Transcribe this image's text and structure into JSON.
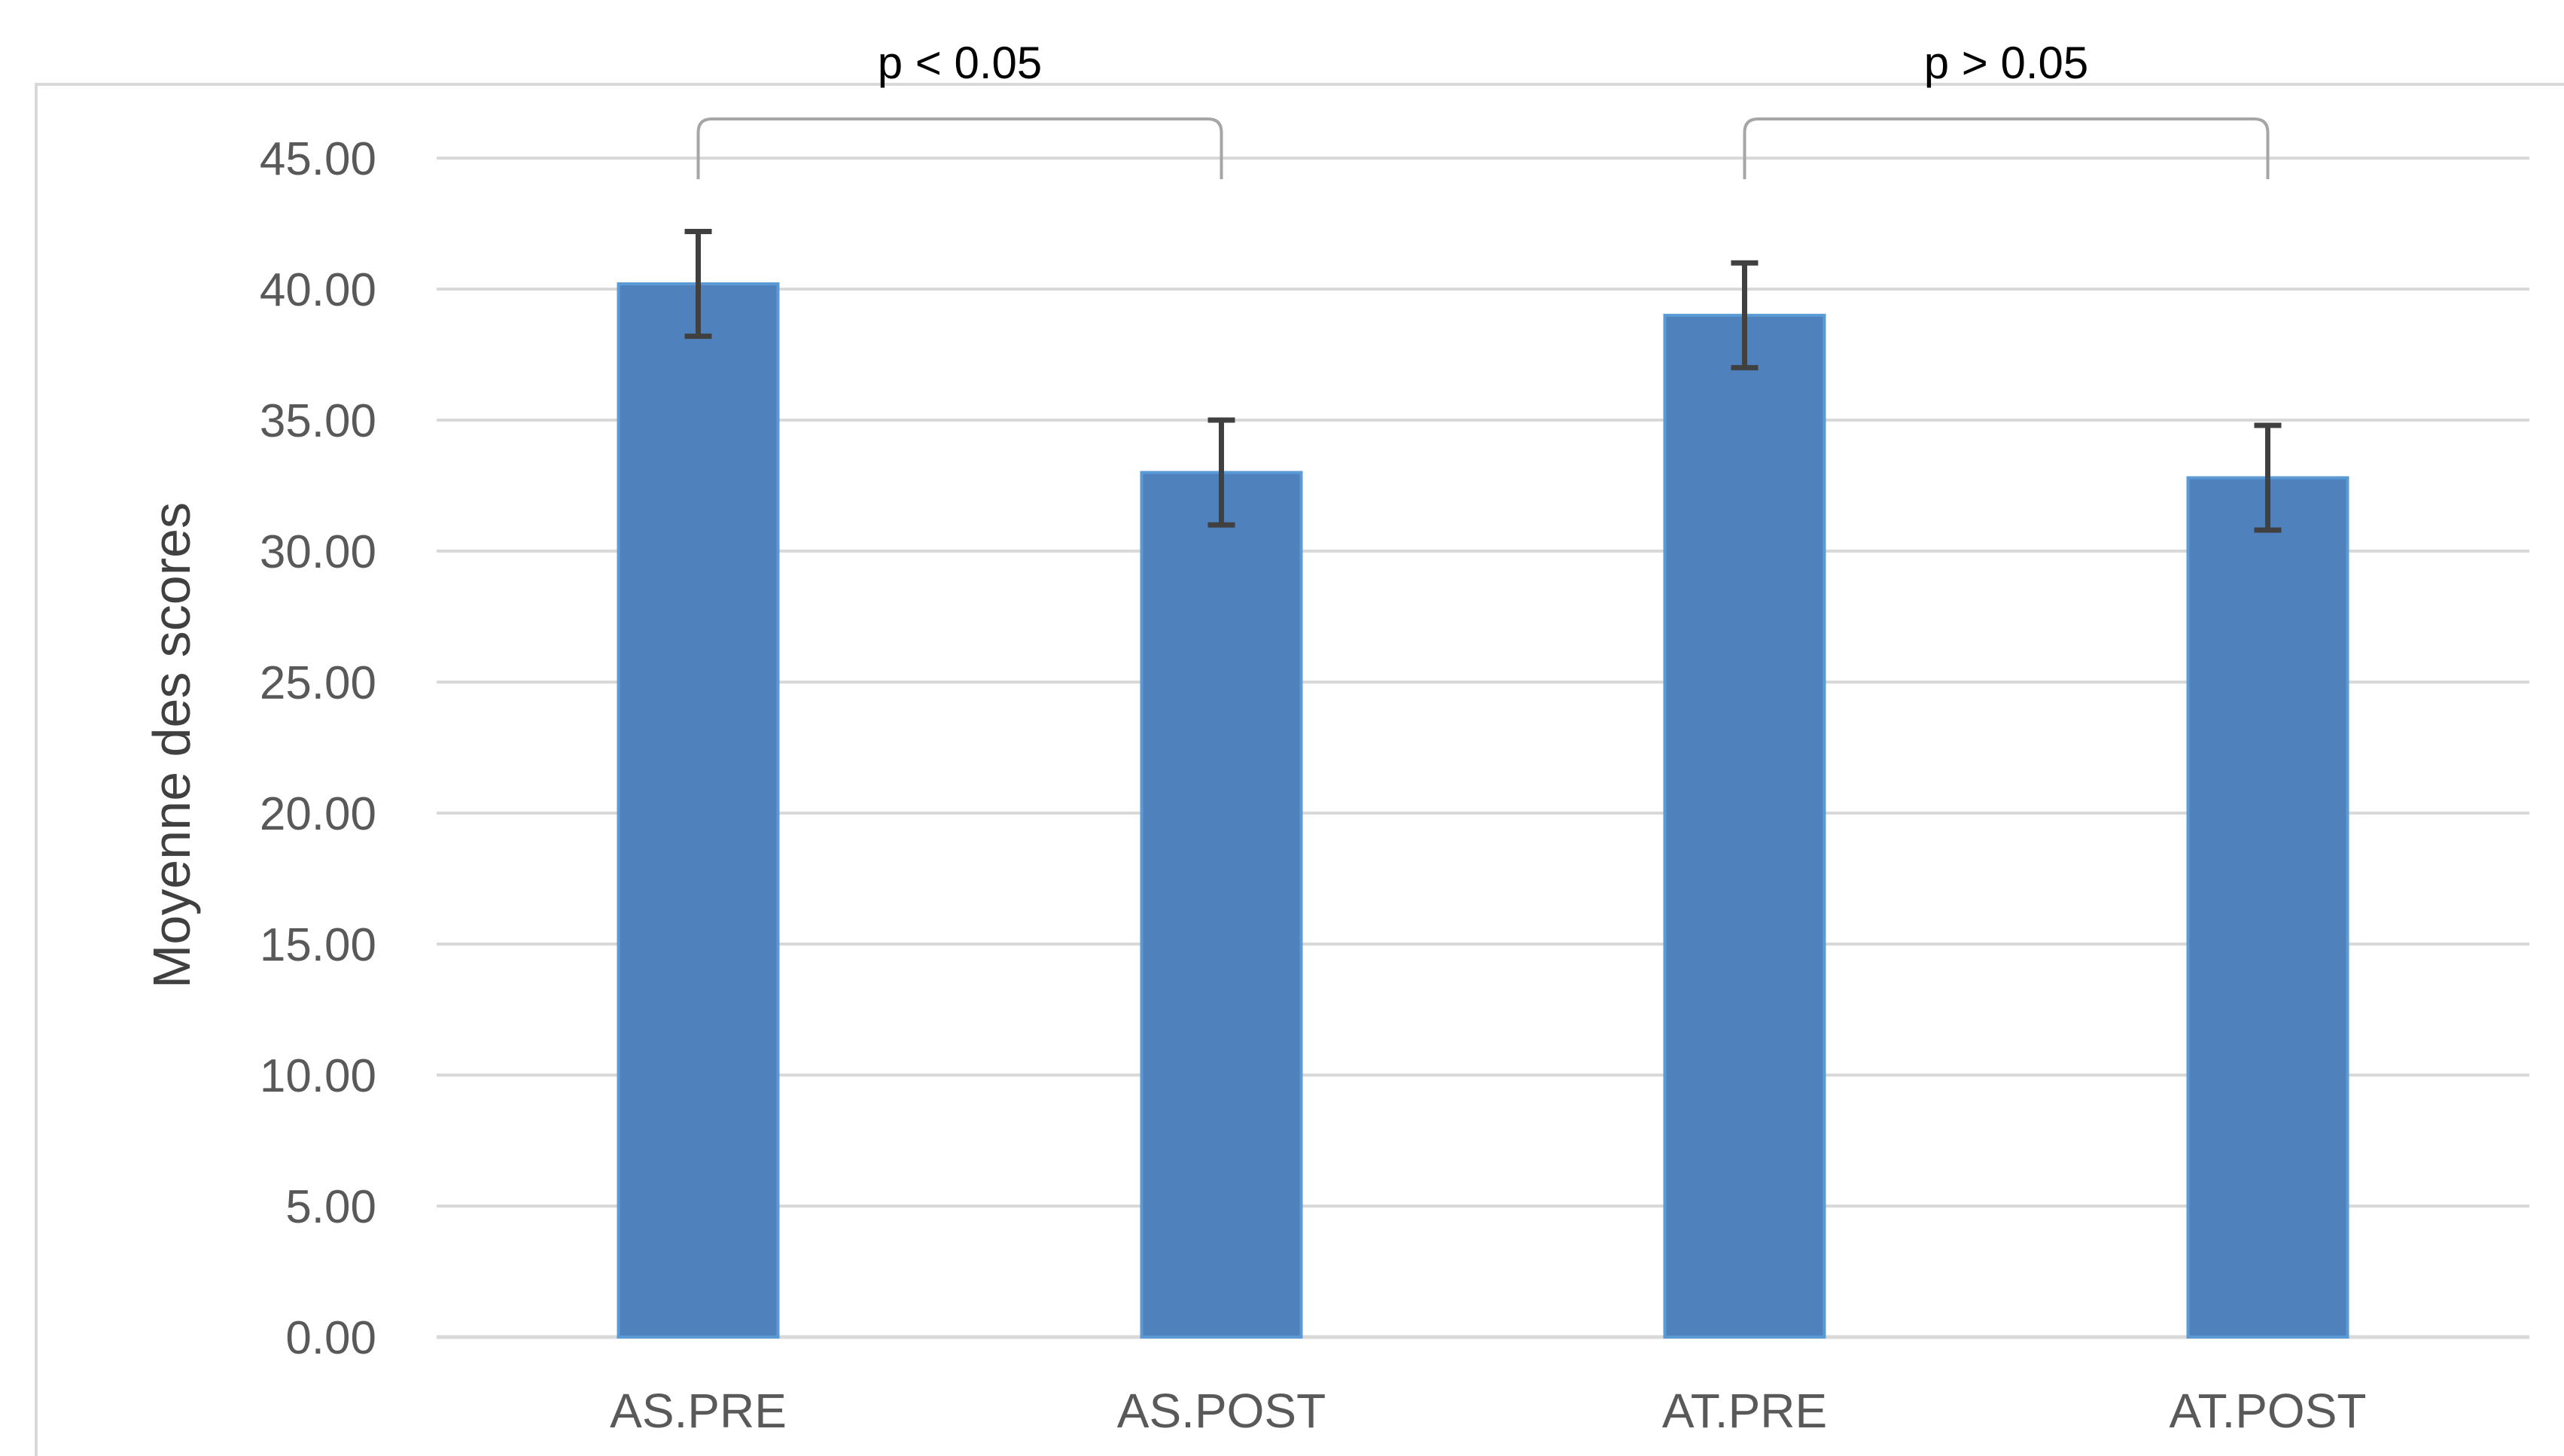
{
  "chart_data": {
    "type": "bar",
    "title": "",
    "xlabel": "",
    "ylabel": "Moyenne des scores",
    "ylim": [
      0,
      45
    ],
    "ytick_step": 5,
    "ytick_decimals": 2,
    "grid": true,
    "legend": "none",
    "categories": [
      "AS.PRE",
      "AS.POST",
      "AT.PRE",
      "AT.POST"
    ],
    "values": [
      40.2,
      33.0,
      39.0,
      32.8
    ],
    "error_bars": [
      2.0,
      2.0,
      2.0,
      2.0
    ],
    "annotations": [
      {
        "text": "p < 0.05",
        "from": "AS.PRE",
        "to": "AS.POST"
      },
      {
        "text": "p > 0.05",
        "from": "AT.PRE",
        "to": "AT.POST"
      }
    ],
    "colors": {
      "bar": "#4f81bd",
      "bar_edge": "#5b9bd5",
      "grid": "#d9d9d9",
      "error": "#404040",
      "bracket": "#a6a6a6",
      "frame": "#d9d9d9"
    }
  }
}
